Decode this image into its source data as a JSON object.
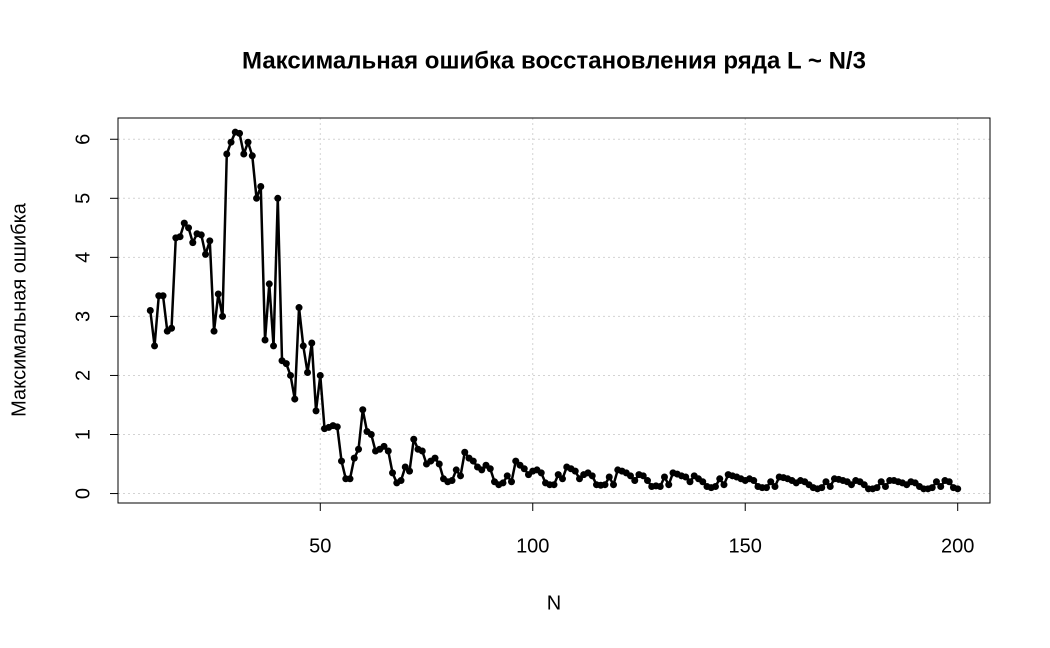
{
  "chart_data": {
    "type": "line",
    "title": "Максимальная ошибка восстановления ряда L ~ N/3",
    "xlabel": "N",
    "ylabel": "Максимальная ошибка",
    "color": "#000000",
    "grid": true,
    "xlim": [
      2.4,
      207.6
    ],
    "ylim": [
      -0.16,
      6.36
    ],
    "xticks": [
      50,
      100,
      150,
      200
    ],
    "yticks": [
      0,
      1,
      2,
      3,
      4,
      5,
      6
    ],
    "x": [
      10,
      11,
      12,
      13,
      14,
      15,
      16,
      17,
      18,
      19,
      20,
      21,
      22,
      23,
      24,
      25,
      26,
      27,
      28,
      29,
      30,
      31,
      32,
      33,
      34,
      35,
      36,
      37,
      38,
      39,
      40,
      41,
      42,
      43,
      44,
      45,
      46,
      47,
      48,
      49,
      50,
      51,
      52,
      53,
      54,
      55,
      56,
      57,
      58,
      59,
      60,
      61,
      62,
      63,
      64,
      65,
      66,
      67,
      68,
      69,
      70,
      71,
      72,
      73,
      74,
      75,
      76,
      77,
      78,
      79,
      80,
      81,
      82,
      83,
      84,
      85,
      86,
      87,
      88,
      89,
      90,
      91,
      92,
      93,
      94,
      95,
      96,
      97,
      98,
      99,
      100,
      101,
      102,
      103,
      104,
      105,
      106,
      107,
      108,
      109,
      110,
      111,
      112,
      113,
      114,
      115,
      116,
      117,
      118,
      119,
      120,
      121,
      122,
      123,
      124,
      125,
      126,
      127,
      128,
      129,
      130,
      131,
      132,
      133,
      134,
      135,
      136,
      137,
      138,
      139,
      140,
      141,
      142,
      143,
      144,
      145,
      146,
      147,
      148,
      149,
      150,
      151,
      152,
      153,
      154,
      155,
      156,
      157,
      158,
      159,
      160,
      161,
      162,
      163,
      164,
      165,
      166,
      167,
      168,
      169,
      170,
      171,
      172,
      173,
      174,
      175,
      176,
      177,
      178,
      179,
      180,
      181,
      182,
      183,
      184,
      185,
      186,
      187,
      188,
      189,
      190,
      191,
      192,
      193,
      194,
      195,
      196,
      197,
      198,
      199,
      200
    ],
    "values": [
      3.1,
      2.5,
      3.35,
      3.35,
      2.75,
      2.8,
      4.33,
      4.35,
      4.58,
      4.5,
      4.25,
      4.4,
      4.38,
      4.05,
      4.28,
      2.75,
      3.38,
      3.0,
      5.75,
      5.95,
      6.12,
      6.1,
      5.75,
      5.95,
      5.72,
      5.0,
      5.2,
      2.6,
      3.55,
      2.5,
      5.0,
      2.25,
      2.2,
      2.0,
      1.6,
      3.15,
      2.5,
      2.05,
      2.55,
      1.4,
      2.0,
      1.1,
      1.12,
      1.15,
      1.13,
      0.55,
      0.25,
      0.25,
      0.6,
      0.75,
      1.42,
      1.05,
      1.0,
      0.72,
      0.75,
      0.8,
      0.72,
      0.35,
      0.18,
      0.22,
      0.45,
      0.38,
      0.92,
      0.75,
      0.72,
      0.5,
      0.55,
      0.6,
      0.5,
      0.25,
      0.2,
      0.22,
      0.4,
      0.3,
      0.7,
      0.6,
      0.55,
      0.45,
      0.4,
      0.48,
      0.42,
      0.2,
      0.15,
      0.18,
      0.3,
      0.2,
      0.55,
      0.48,
      0.42,
      0.32,
      0.38,
      0.4,
      0.35,
      0.18,
      0.15,
      0.15,
      0.32,
      0.25,
      0.45,
      0.42,
      0.38,
      0.25,
      0.32,
      0.35,
      0.3,
      0.15,
      0.14,
      0.15,
      0.28,
      0.15,
      0.4,
      0.38,
      0.35,
      0.3,
      0.22,
      0.32,
      0.3,
      0.22,
      0.12,
      0.13,
      0.12,
      0.28,
      0.15,
      0.35,
      0.33,
      0.3,
      0.28,
      0.2,
      0.3,
      0.25,
      0.2,
      0.12,
      0.1,
      0.12,
      0.25,
      0.15,
      0.32,
      0.3,
      0.28,
      0.25,
      0.22,
      0.25,
      0.22,
      0.12,
      0.1,
      0.1,
      0.2,
      0.12,
      0.28,
      0.27,
      0.25,
      0.22,
      0.18,
      0.22,
      0.2,
      0.15,
      0.1,
      0.08,
      0.1,
      0.2,
      0.12,
      0.25,
      0.24,
      0.22,
      0.2,
      0.15,
      0.22,
      0.2,
      0.15,
      0.08,
      0.08,
      0.1,
      0.2,
      0.12,
      0.22,
      0.22,
      0.2,
      0.18,
      0.15,
      0.2,
      0.18,
      0.12,
      0.08,
      0.08,
      0.1,
      0.2,
      0.12,
      0.22,
      0.2,
      0.1,
      0.08
    ]
  }
}
